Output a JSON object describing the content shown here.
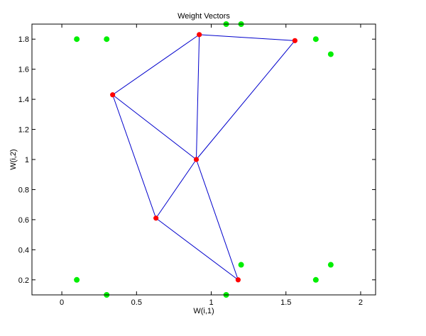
{
  "chart_data": {
    "type": "scatter",
    "title": "Weight Vectors",
    "xlabel": "W(i,1)",
    "ylabel": "W(i,2)",
    "xlim": [
      -0.2,
      2.1
    ],
    "ylim": [
      0.1,
      1.9
    ],
    "xticks": [
      0,
      0.5,
      1,
      1.5,
      2
    ],
    "xtick_labels": [
      "0",
      "0.5",
      "1",
      "1.5",
      "2"
    ],
    "yticks": [
      0.2,
      0.4,
      0.6,
      0.8,
      1,
      1.2,
      1.4,
      1.6,
      1.8
    ],
    "ytick_labels": [
      "0.2",
      "0.4",
      "0.6",
      "0.8",
      "1",
      "1.2",
      "1.4",
      "1.6",
      "1.8"
    ],
    "grid": false,
    "input_points": {
      "color": "#00ee00",
      "points": [
        [
          0.1,
          1.8
        ],
        [
          0.3,
          1.8
        ],
        [
          1.1,
          1.9
        ],
        [
          1.2,
          1.9
        ],
        [
          1.7,
          1.8
        ],
        [
          1.8,
          1.7
        ],
        [
          0.1,
          0.2
        ],
        [
          0.3,
          0.1
        ],
        [
          1.1,
          0.1
        ],
        [
          1.2,
          0.3
        ],
        [
          1.7,
          0.2
        ],
        [
          1.8,
          0.3
        ]
      ]
    },
    "weight_vectors": {
      "color": "#ff0000",
      "points": [
        [
          0.92,
          1.83
        ],
        [
          1.56,
          1.79
        ],
        [
          0.34,
          1.43
        ],
        [
          0.9,
          1.0
        ],
        [
          0.63,
          0.61
        ],
        [
          1.18,
          0.2
        ]
      ]
    },
    "links": {
      "color": "#0000cc",
      "edges": [
        [
          0,
          1
        ],
        [
          0,
          2
        ],
        [
          0,
          3
        ],
        [
          1,
          3
        ],
        [
          2,
          3
        ],
        [
          2,
          4
        ],
        [
          3,
          4
        ],
        [
          3,
          5
        ],
        [
          4,
          5
        ]
      ]
    }
  }
}
